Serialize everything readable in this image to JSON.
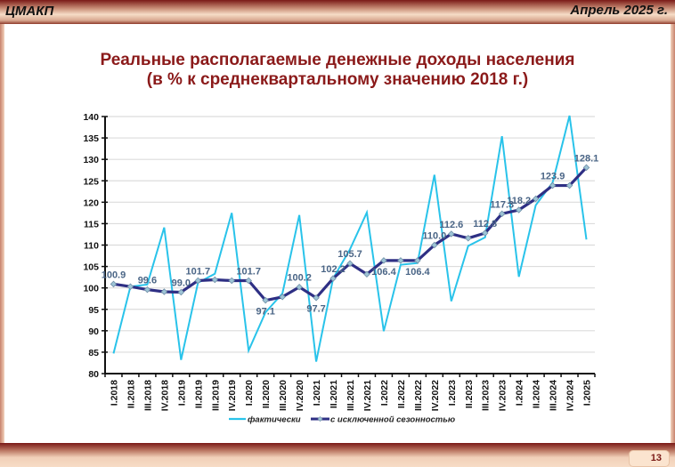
{
  "header": {
    "org": "ЦМАКП",
    "date": "Апрель 2025 г."
  },
  "footer": {
    "page_number": "13"
  },
  "colors": {
    "actual": "#29c3ea",
    "seasonally_adjusted": "#2e2f84",
    "marker_fill": "#9ec4d6",
    "title": "#8b1a1a",
    "label": "#4a6586"
  },
  "chart_data": {
    "type": "line",
    "title": "Реальные располагаемые денежные доходы населения",
    "subtitle": "(в % к среднеквартальному значению 2018 г.)",
    "xlabel": "",
    "ylabel": "",
    "ylim": [
      80,
      140
    ],
    "yticks": [
      80,
      85,
      90,
      95,
      100,
      105,
      110,
      115,
      120,
      125,
      130,
      135,
      140
    ],
    "grid": true,
    "legend_position": "bottom",
    "categories": [
      "I.2018",
      "II.2018",
      "III.2018",
      "IV.2018",
      "I.2019",
      "II.2019",
      "III.2019",
      "IV.2019",
      "I.2020",
      "II.2020",
      "III.2020",
      "IV.2020",
      "I.2021",
      "II.2021",
      "III.2021",
      "IV.2021",
      "I.2022",
      "II.2022",
      "III.2022",
      "IV.2022",
      "I.2023",
      "II.2023",
      "III.2023",
      "IV.2023",
      "I.2024",
      "II.2024",
      "III.2024",
      "IV.2024",
      "I.2025"
    ],
    "series": [
      {
        "name": "фактически",
        "values": [
          84.7,
          100.3,
          100.8,
          114.1,
          83.2,
          101.2,
          103.3,
          117.5,
          85.4,
          94.3,
          98.7,
          117.0,
          82.8,
          102.2,
          109.0,
          117.6,
          89.9,
          105.4,
          105.8,
          126.4,
          96.9,
          109.8,
          111.8,
          135.4,
          102.6,
          119.3,
          124.6,
          140.2,
          111.3
        ]
      },
      {
        "name": "с исключенной сезонностью",
        "values": [
          100.9,
          100.3,
          99.6,
          99.1,
          99.0,
          101.7,
          101.9,
          101.7,
          101.7,
          97.1,
          97.9,
          100.2,
          97.7,
          102.2,
          105.7,
          103.2,
          106.4,
          106.4,
          106.4,
          110.0,
          112.6,
          111.6,
          112.8,
          117.3,
          118.2,
          120.8,
          123.9,
          123.9,
          128.1
        ]
      }
    ],
    "data_labels": [
      {
        "index": 0,
        "text": "100.9",
        "pos": "above"
      },
      {
        "index": 2,
        "text": "99.6",
        "pos": "above"
      },
      {
        "index": 4,
        "text": "99.0",
        "pos": "above"
      },
      {
        "index": 5,
        "text": "101.7",
        "pos": "above"
      },
      {
        "index": 8,
        "text": "101.7",
        "pos": "above"
      },
      {
        "index": 9,
        "text": "97.1",
        "pos": "below"
      },
      {
        "index": 11,
        "text": "100.2",
        "pos": "above"
      },
      {
        "index": 12,
        "text": "97.7",
        "pos": "below"
      },
      {
        "index": 13,
        "text": "102.2",
        "pos": "above"
      },
      {
        "index": 14,
        "text": "105.7",
        "pos": "above"
      },
      {
        "index": 16,
        "text": "106.4",
        "pos": "below"
      },
      {
        "index": 18,
        "text": "106.4",
        "pos": "below"
      },
      {
        "index": 19,
        "text": "110.0",
        "pos": "above"
      },
      {
        "index": 20,
        "text": "112.6",
        "pos": "above"
      },
      {
        "index": 22,
        "text": "112.8",
        "pos": "above"
      },
      {
        "index": 23,
        "text": "117.3",
        "pos": "above"
      },
      {
        "index": 24,
        "text": "118.2",
        "pos": "above"
      },
      {
        "index": 26,
        "text": "123.9",
        "pos": "above"
      },
      {
        "index": 28,
        "text": "128.1",
        "pos": "above"
      }
    ]
  }
}
